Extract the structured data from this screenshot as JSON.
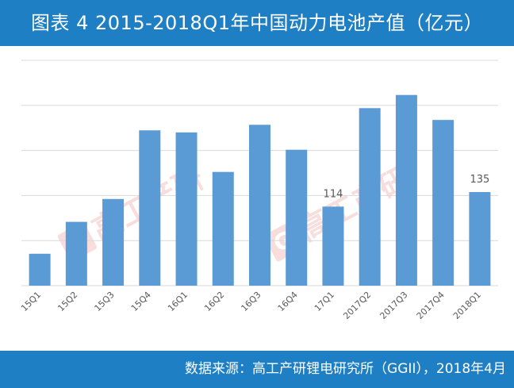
{
  "header": {
    "title": "图表 4  2015-2018Q1年中国动力电池产值（亿元）"
  },
  "footer": {
    "source": "数据来源：高工产研锂电研究所（GGII），2018年4月"
  },
  "watermark": {
    "text": "高工产研"
  },
  "colors": {
    "title_bar": "#1f7fc4",
    "bar": "#5b9bd5",
    "grid": "#d9d9d9",
    "label": "#595959"
  },
  "chart_data": {
    "type": "bar",
    "title": "图表 4  2015-2018Q1年中国动力电池产值（亿元）",
    "categories": [
      "15Q1",
      "15Q2",
      "15Q3",
      "15Q4",
      "16Q1",
      "16Q2",
      "16Q3",
      "16Q4",
      "17Q1",
      "2017Q2",
      "2017Q3",
      "2017Q4",
      "2018Q1"
    ],
    "values": [
      46,
      92,
      125,
      224,
      221,
      164,
      232,
      196,
      114,
      256,
      275,
      239,
      135
    ],
    "data_labels": {
      "8": "114",
      "12": "135"
    },
    "ylim": [
      0,
      325
    ],
    "gridlines": [
      0,
      65,
      130,
      195,
      260,
      325
    ],
    "show_y_tick_labels": false,
    "grid": true,
    "legend": "none"
  }
}
